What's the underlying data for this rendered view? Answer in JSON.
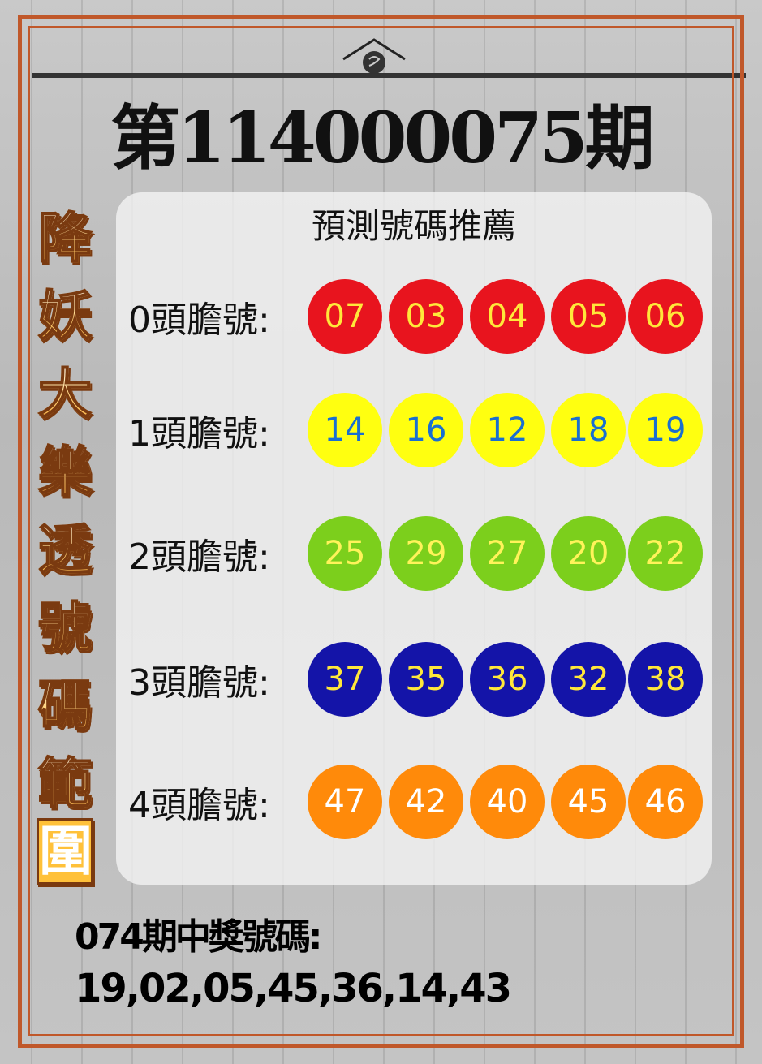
{
  "title": "第114000075期",
  "side_title": [
    "降",
    "妖",
    "大",
    "樂",
    "透",
    "號",
    "碼",
    "範",
    "圍"
  ],
  "panel": {
    "subtitle": "預測號碼推薦",
    "rows": [
      {
        "label": "0頭膽號:",
        "numbers": [
          "07",
          "03",
          "04",
          "05",
          "06"
        ],
        "ball_color": "#e8141e",
        "text_color": "#ffe83a"
      },
      {
        "label": "1頭膽號:",
        "numbers": [
          "14",
          "16",
          "12",
          "18",
          "19"
        ],
        "ball_color": "#ffff10",
        "text_color": "#1a6fd0"
      },
      {
        "label": "2頭膽號:",
        "numbers": [
          "25",
          "29",
          "27",
          "20",
          "22"
        ],
        "ball_color": "#7ccf1c",
        "text_color": "#fff35a"
      },
      {
        "label": "3頭膽號:",
        "numbers": [
          "37",
          "35",
          "36",
          "32",
          "38"
        ],
        "ball_color": "#1414a8",
        "text_color": "#ffe83a"
      },
      {
        "label": "4頭膽號:",
        "numbers": [
          "47",
          "42",
          "40",
          "45",
          "46"
        ],
        "ball_color": "#ff8a0a",
        "text_color": "#ffffff"
      }
    ]
  },
  "previous": {
    "label": "074期中獎號碼:",
    "numbers": "19,02,05,45,36,14,43"
  },
  "frame_color": "#c0582a"
}
